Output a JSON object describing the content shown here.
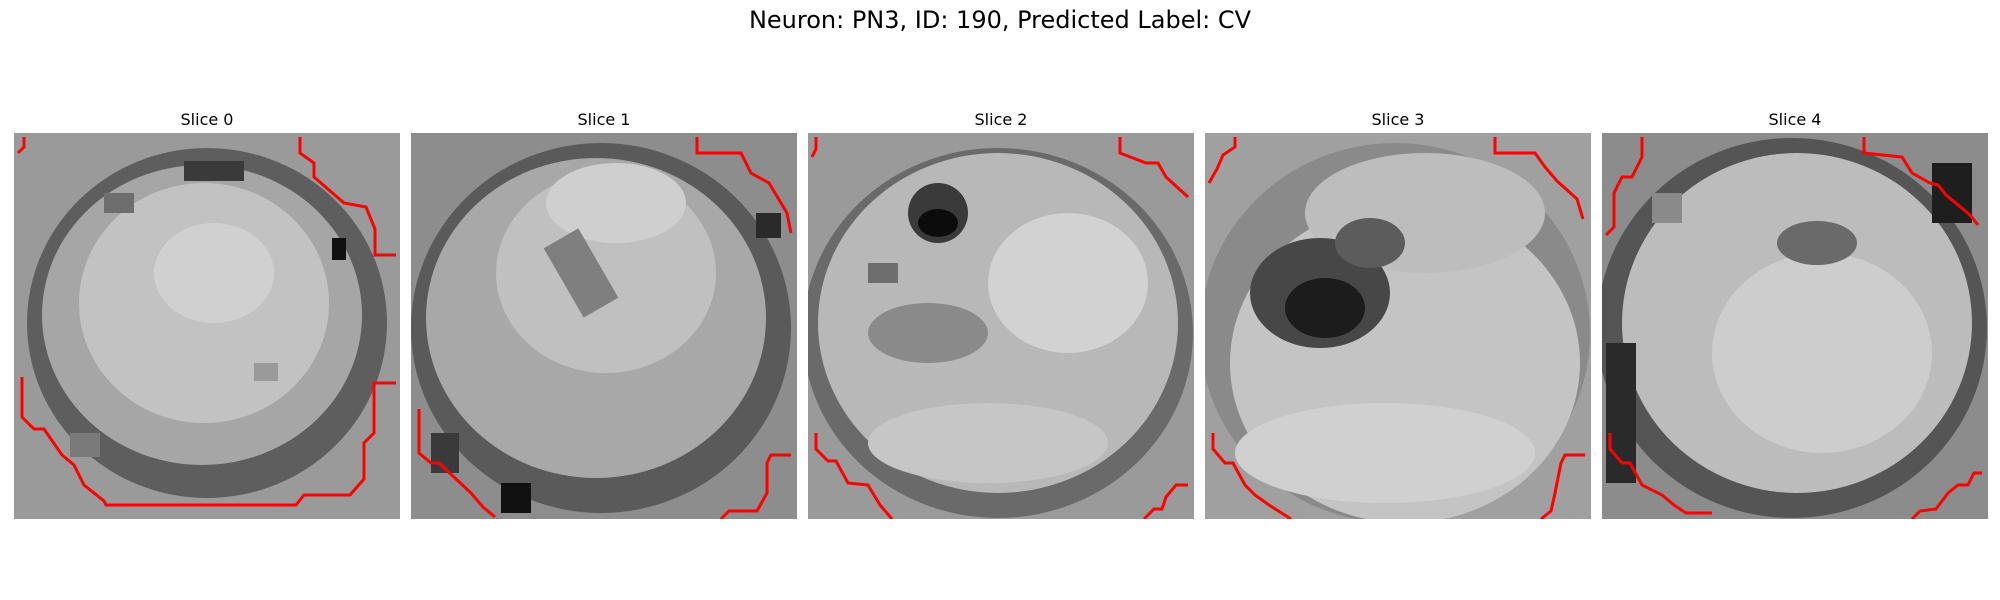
{
  "figure": {
    "title": "Neuron: PN3, ID: 190, Predicted Label: CV"
  },
  "slices": [
    {
      "label": "Slice 0"
    },
    {
      "label": "Slice 1"
    },
    {
      "label": "Slice 2"
    },
    {
      "label": "Slice 3"
    },
    {
      "label": "Slice 4"
    }
  ],
  "colors": {
    "contour": "#ff0000",
    "background": "#ffffff"
  }
}
